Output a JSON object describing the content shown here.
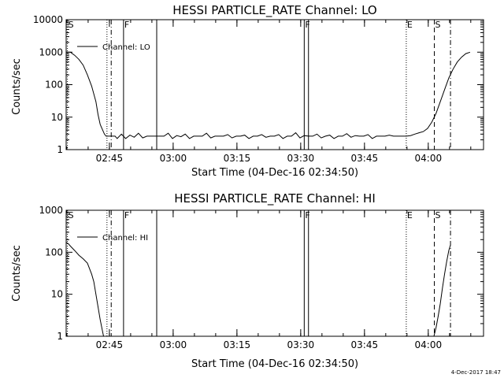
{
  "chart_data": [
    {
      "type": "line",
      "title": "HESSI PARTICLE_RATE Channel: LO",
      "ylabel": "Counts/sec",
      "xlabel": "Start Time (04-Dec-16 02:34:50)",
      "yscale": "log",
      "ylim": [
        1,
        10000
      ],
      "xlim": [
        "02:34:50",
        "04:13:00"
      ],
      "x_ticks": [
        {
          "t": "02:45",
          "min": 10.17
        },
        {
          "t": "03:00",
          "min": 25.17
        },
        {
          "t": "03:15",
          "min": 40.17
        },
        {
          "t": "03:30",
          "min": 55.17
        },
        {
          "t": "03:45",
          "min": 70.17
        },
        {
          "t": "04:00",
          "min": 85.17
        }
      ],
      "y_ticks": [
        {
          "label": "1",
          "v": 1
        },
        {
          "label": "10",
          "v": 10
        },
        {
          "label": "100",
          "v": 100
        },
        {
          "label": "1000",
          "v": 1000
        },
        {
          "label": "10000",
          "v": 10000
        }
      ],
      "legend": {
        "entry": "Channel: LO",
        "placement": "top-left"
      },
      "series": [
        {
          "x_min": [
            0,
            1,
            2,
            3,
            4,
            5,
            6,
            7,
            7.5,
            8,
            9,
            9.4,
            10,
            11,
            11.5,
            12,
            13,
            14,
            15,
            16,
            17,
            18,
            19,
            20,
            21,
            22,
            23,
            24,
            25,
            26,
            27,
            28,
            29,
            30,
            31,
            32,
            33,
            34,
            35,
            36,
            37,
            38,
            39,
            40,
            41,
            42,
            43,
            44,
            45,
            46,
            47,
            48,
            49,
            50,
            51,
            52,
            53,
            54,
            55,
            56,
            57,
            58,
            59,
            60,
            61,
            62,
            63,
            64,
            65,
            66,
            67,
            68,
            69,
            70,
            71,
            72,
            73,
            74,
            75,
            76,
            77,
            78,
            79,
            80,
            81,
            82,
            83,
            84,
            85,
            86,
            87,
            88,
            89,
            90,
            91,
            92,
            93,
            94,
            95
          ],
          "y": [
            1000,
            1000,
            800,
            600,
            400,
            200,
            90,
            30,
            12,
            6,
            3,
            2.6,
            2.6,
            2.6,
            2.6,
            2.2,
            3,
            2.2,
            2.8,
            2.4,
            3.2,
            2.3,
            2.6,
            2.6,
            2.6,
            2.6,
            2.6,
            3.2,
            2.2,
            2.7,
            2.5,
            3.0,
            2.2,
            2.6,
            2.6,
            2.6,
            3.2,
            2.3,
            2.6,
            2.6,
            2.6,
            2.9,
            2.3,
            2.6,
            2.6,
            2.8,
            2.2,
            2.6,
            2.6,
            2.9,
            2.4,
            2.6,
            2.6,
            2.9,
            2.2,
            2.6,
            2.6,
            3.3,
            2.3,
            2.7,
            2.6,
            2.6,
            3.0,
            2.3,
            2.6,
            2.8,
            2.2,
            2.6,
            2.6,
            3.1,
            2.4,
            2.7,
            2.6,
            2.6,
            2.9,
            2.2,
            2.6,
            2.6,
            2.6,
            2.8,
            2.6,
            2.6,
            2.6,
            2.6,
            2.7,
            3.0,
            3.3,
            3.6,
            4.5,
            7,
            13,
            30,
            70,
            160,
            300,
            500,
            700,
            900,
            1000
          ]
        }
      ],
      "markers": [
        {
          "min": 0.3,
          "label": "S",
          "style": "dotted"
        },
        {
          "min": 9.6,
          "style": "dotted"
        },
        {
          "min": 10.6,
          "style": "dashdot"
        },
        {
          "min": 13.5,
          "label": "F",
          "style": "solid"
        },
        {
          "min": 21.3,
          "style": "solid"
        },
        {
          "min": 56.0,
          "label": "F",
          "style": "solid"
        },
        {
          "min": 57.0,
          "style": "solid"
        },
        {
          "min": 80.0,
          "label": "E",
          "style": "dotted"
        },
        {
          "min": 86.6,
          "label": "S",
          "style": "dashed"
        },
        {
          "min": 90.4,
          "style": "dashdot"
        }
      ]
    },
    {
      "type": "line",
      "title": "HESSI PARTICLE_RATE Channel: HI",
      "ylabel": "Counts/sec",
      "xlabel": "Start Time (04-Dec-16 02:34:50)",
      "yscale": "log",
      "ylim": [
        1,
        1000
      ],
      "xlim": [
        "02:34:50",
        "04:13:00"
      ],
      "x_ticks": [
        {
          "t": "02:45",
          "min": 10.17
        },
        {
          "t": "03:00",
          "min": 25.17
        },
        {
          "t": "03:15",
          "min": 40.17
        },
        {
          "t": "03:30",
          "min": 55.17
        },
        {
          "t": "03:45",
          "min": 70.17
        },
        {
          "t": "04:00",
          "min": 85.17
        }
      ],
      "y_ticks": [
        {
          "label": "1",
          "v": 1
        },
        {
          "label": "10",
          "v": 10
        },
        {
          "label": "100",
          "v": 100
        },
        {
          "label": "1000",
          "v": 1000
        }
      ],
      "legend": {
        "entry": "Channel: HI",
        "placement": "top-left"
      },
      "series": [
        {
          "x_min": [
            0,
            0.5,
            1,
            2,
            3,
            4,
            5,
            6,
            6.5,
            7,
            7.5,
            8,
            8.5,
            8.8
          ],
          "y": [
            170,
            160,
            140,
            110,
            85,
            70,
            55,
            30,
            20,
            10,
            5,
            2.5,
            1.4,
            1
          ]
        },
        {
          "x_min": [
            86.5,
            87,
            87.5,
            88,
            88.5,
            89,
            89.5,
            90,
            90.4
          ],
          "y": [
            1,
            1.6,
            3,
            6,
            14,
            30,
            60,
            110,
            150
          ]
        }
      ],
      "markers": [
        {
          "min": 0.3,
          "label": "S",
          "style": "dotted"
        },
        {
          "min": 9.6,
          "style": "dotted"
        },
        {
          "min": 10.6,
          "style": "dashdot"
        },
        {
          "min": 13.5,
          "label": "F",
          "style": "solid"
        },
        {
          "min": 21.3,
          "style": "solid"
        },
        {
          "min": 56.0,
          "label": "F",
          "style": "solid"
        },
        {
          "min": 57.0,
          "style": "solid"
        },
        {
          "min": 80.0,
          "label": "E",
          "style": "dotted"
        },
        {
          "min": 86.6,
          "label": "S",
          "style": "dashed"
        },
        {
          "min": 90.4,
          "style": "dashdot"
        }
      ]
    }
  ],
  "footer": {
    "stamp": "4-Dec-2017 18:47"
  }
}
